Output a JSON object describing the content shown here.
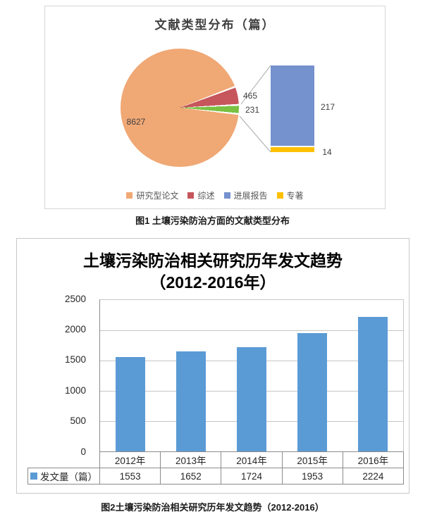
{
  "captions": {
    "figure1": "图1 土壤污染防治方面的文献类型分布",
    "figure2": "图2土壤污染防治相关研究历年发文趋势（2012-2016）"
  },
  "chart_data": [
    {
      "type": "pie",
      "subtype": "bar-of-pie",
      "title": "文献类型分布（篇）",
      "slices": [
        {
          "label": "研究型论文",
          "value": 8627,
          "color": "#F0A875"
        },
        {
          "label": "综述",
          "value": 465,
          "color": "#C6565C"
        }
      ],
      "breakout": {
        "total": 231,
        "color": "#7AC143",
        "bars": [
          {
            "label": "进展报告",
            "value": 217,
            "color": "#7591CE"
          },
          {
            "label": "专著",
            "value": 14,
            "color": "#FFC000"
          }
        ]
      },
      "legend_items": [
        {
          "label": "研究型论文",
          "color": "#F0A875"
        },
        {
          "label": "综述",
          "color": "#C6565C"
        },
        {
          "label": "进展报告",
          "color": "#7591CE"
        },
        {
          "label": "专著",
          "color": "#FFC000"
        }
      ],
      "legend_position": "bottom"
    },
    {
      "type": "bar",
      "title": "土壤污染防治相关研究历年发文趋势（2012-2016年）",
      "title_lines": [
        "土壤污染防治相关研究历年发文趋势",
        "（2012-2016年）"
      ],
      "categories": [
        "2012年",
        "2013年",
        "2014年",
        "2015年",
        "2016年"
      ],
      "series": [
        {
          "name": "发文量（篇）",
          "values": [
            1553,
            1652,
            1724,
            1953,
            2224
          ],
          "color": "#5B9BD5"
        }
      ],
      "xlabel": "",
      "ylabel": "",
      "ylim": [
        0,
        2500
      ],
      "yticks": [
        0,
        500,
        1000,
        1500,
        2000,
        2500
      ],
      "grid": true,
      "legend_position": "bottom-left-table"
    }
  ]
}
